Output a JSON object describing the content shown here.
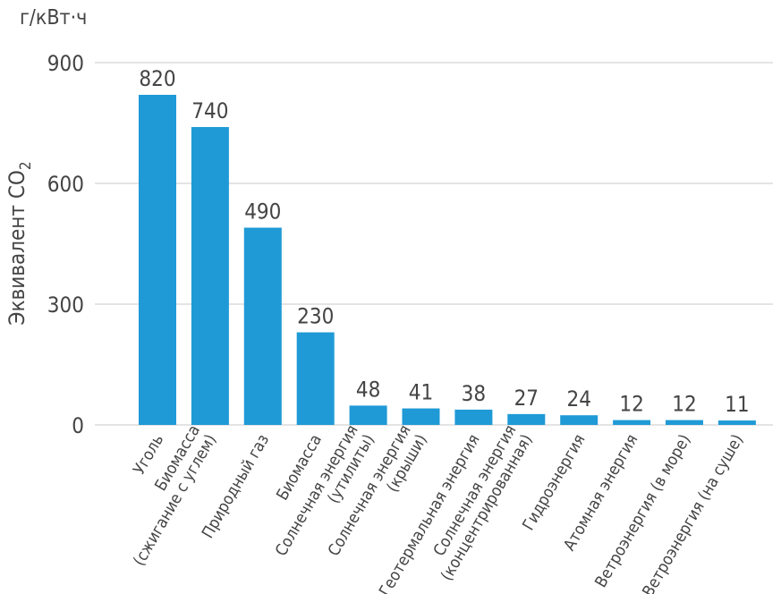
{
  "chart_data": {
    "type": "bar",
    "unit_label": "г/кВт·ч",
    "ylabel": "Эквивалент CO",
    "ylabel_sub": "2",
    "ylim": [
      0,
      900
    ],
    "yticks": [
      0,
      300,
      600,
      900
    ],
    "grid": true,
    "color": "#1f9ad6",
    "categories": [
      [
        "Уголь"
      ],
      [
        "Биомасса",
        "(сжигание с углем)"
      ],
      [
        "Природный газ"
      ],
      [
        "Биомасса"
      ],
      [
        "Солнечная энергия",
        "(утилиты)"
      ],
      [
        "Солнечная энергия",
        "(крыши)"
      ],
      [
        "Геотермальная энергия"
      ],
      [
        "Солнечная энергия",
        "(концентрированная)"
      ],
      [
        "Гидроэнергия"
      ],
      [
        "Атомная энергия"
      ],
      [
        "Ветроэнергия (в море)"
      ],
      [
        "Ветроэнергия (на суше)"
      ]
    ],
    "values": [
      820,
      740,
      490,
      230,
      48,
      41,
      38,
      27,
      24,
      12,
      12,
      11
    ]
  }
}
